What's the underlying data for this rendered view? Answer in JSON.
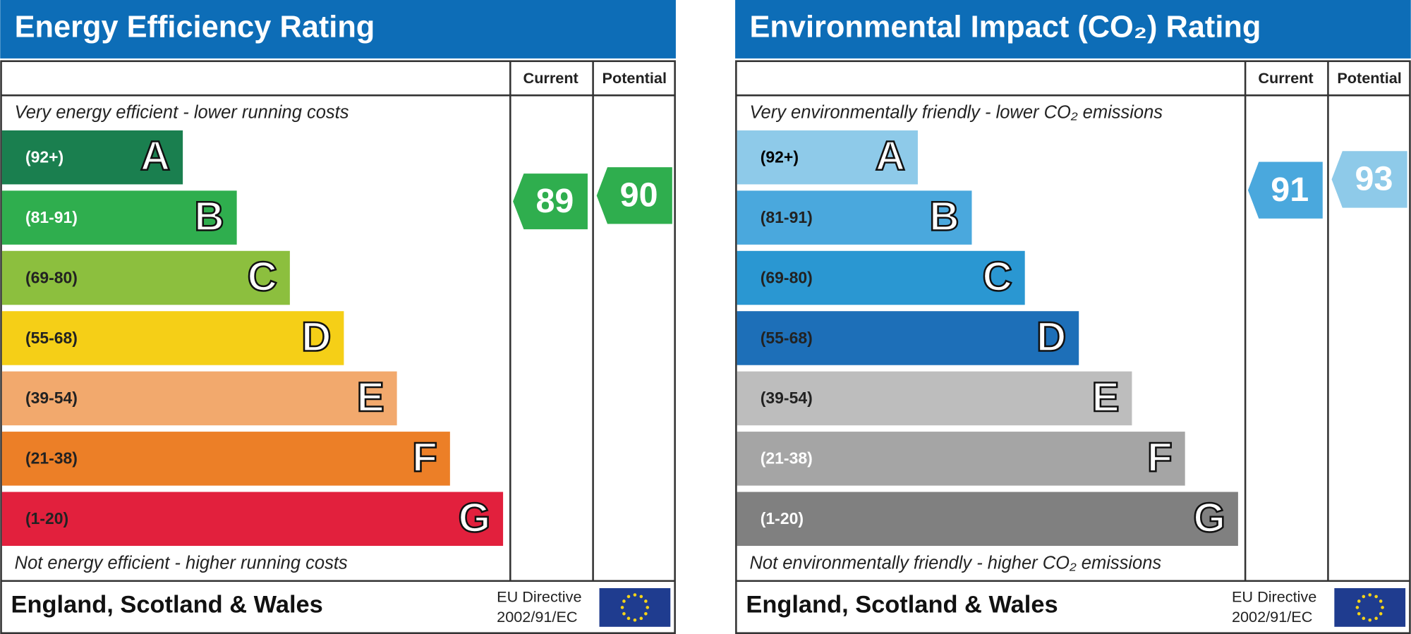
{
  "panels": [
    {
      "title": "Energy Efficiency Rating",
      "columns": [
        "Current",
        "Potential"
      ],
      "top_text": "Very energy efficient - lower running costs",
      "bottom_text": "Not energy efficient - higher running costs",
      "bands": [
        {
          "range": "(92+)",
          "letter": "A",
          "color": "#1a7f4f",
          "text_color": "#ffffff"
        },
        {
          "range": "(81-91)",
          "letter": "B",
          "color": "#2fae4e",
          "text_color": "#ffffff"
        },
        {
          "range": "(69-80)",
          "letter": "C",
          "color": "#8cbf3e",
          "text_color": "#222222"
        },
        {
          "range": "(55-68)",
          "letter": "D",
          "color": "#f5cf17",
          "text_color": "#222222"
        },
        {
          "range": "(39-54)",
          "letter": "E",
          "color": "#f2a96d",
          "text_color": "#222222"
        },
        {
          "range": "(21-38)",
          "letter": "F",
          "color": "#ec7f27",
          "text_color": "#222222"
        },
        {
          "range": "(1-20)",
          "letter": "G",
          "color": "#e2203d",
          "text_color": "#222222"
        }
      ],
      "current": {
        "value": "89",
        "color": "#2fae4e"
      },
      "potential": {
        "value": "90",
        "color": "#2fae4e"
      },
      "footer": "England, Scotland & Wales",
      "directive": [
        "EU Directive",
        "2002/91/EC"
      ]
    },
    {
      "title": "Environmental Impact (CO₂) Rating",
      "columns": [
        "Current",
        "Potential"
      ],
      "top_text": "Very environmentally friendly - lower CO₂ emissions",
      "bottom_text": "Not environmentally friendly - higher CO₂ emissions",
      "bands": [
        {
          "range": "(92+)",
          "letter": "A",
          "color": "#8ecae9",
          "text_color": "#000000"
        },
        {
          "range": "(81-91)",
          "letter": "B",
          "color": "#4aa8dd",
          "text_color": "#222222"
        },
        {
          "range": "(69-80)",
          "letter": "C",
          "color": "#2a97d2",
          "text_color": "#222222"
        },
        {
          "range": "(55-68)",
          "letter": "D",
          "color": "#1d6fb8",
          "text_color": "#222222"
        },
        {
          "range": "(39-54)",
          "letter": "E",
          "color": "#bdbdbd",
          "text_color": "#222222"
        },
        {
          "range": "(21-38)",
          "letter": "F",
          "color": "#a5a5a5",
          "text_color": "#ffffff"
        },
        {
          "range": "(1-20)",
          "letter": "G",
          "color": "#808080",
          "text_color": "#ffffff"
        }
      ],
      "current": {
        "value": "91",
        "color": "#4aa8dd"
      },
      "potential": {
        "value": "93",
        "color": "#8ecae9"
      },
      "footer": "England, Scotland & Wales",
      "directive": [
        "EU Directive",
        "2002/91/EC"
      ]
    }
  ]
}
